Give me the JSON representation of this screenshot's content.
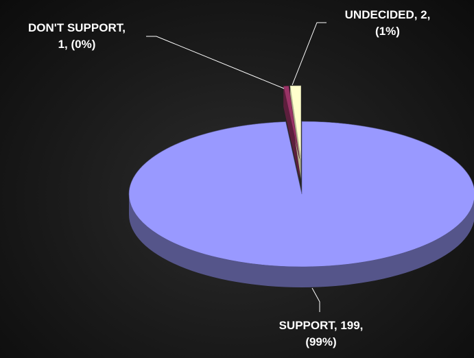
{
  "chart_data": {
    "type": "pie",
    "title": "",
    "legend": "none",
    "grid": false,
    "slices": [
      {
        "name": "SUPPORT",
        "value": 199,
        "percent_text": "(99%)",
        "color": "#9999ff",
        "side_color": "#55558a",
        "label_lines": [
          "SUPPORT, 199,",
          "(99%)"
        ],
        "exploded": false
      },
      {
        "name": "DON'T SUPPORT",
        "value": 1,
        "percent_text": "(0%)",
        "color": "#993366",
        "side_color": "#5c1f3d",
        "label_lines": [
          "DON'T SUPPORT,",
          "1, (0%)"
        ],
        "exploded": true
      },
      {
        "name": "UNDECIDED",
        "value": 2,
        "percent_text": "(1%)",
        "color": "#ffffcc",
        "side_color": "#b3b38f",
        "label_lines": [
          "UNDECIDED, 2,",
          "(1%)"
        ],
        "exploded": true
      }
    ]
  }
}
